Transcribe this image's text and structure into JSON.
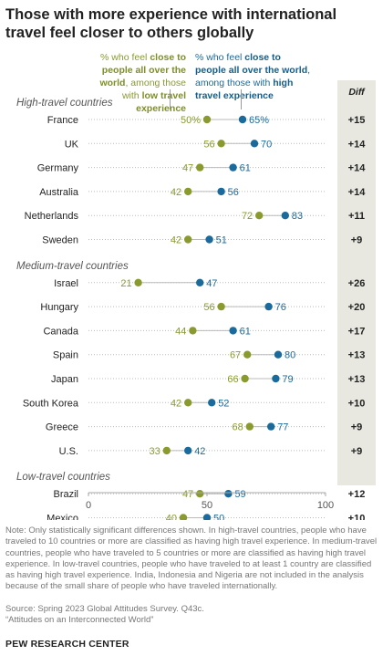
{
  "title": "Those with more experience with international travel feel closer to others globally",
  "legend": {
    "low": {
      "pre": "% who feel ",
      "bold1": "close to people all over the world",
      "mid": ", among those with ",
      "bold2": "low travel experience",
      "color": "#8a9a2e"
    },
    "high": {
      "pre": "% who feel ",
      "bold1": "close to people all over the world",
      "mid": ", among those with ",
      "bold2": "high travel experience",
      "color": "#1a6a9b"
    }
  },
  "colors": {
    "low": "#8a9a2e",
    "high": "#1a6a9b",
    "diff_bg": "#e8e8e0"
  },
  "chart_data": {
    "type": "scatter",
    "subtype": "dot-plot",
    "xlim": [
      0,
      100
    ],
    "x_ticks": [
      "0",
      "50",
      "100"
    ],
    "diff_header": "Diff",
    "series": [
      {
        "name": "Low travel experience",
        "color": "#8a9a2e"
      },
      {
        "name": "High travel experience",
        "color": "#1a6a9b"
      }
    ],
    "groups": [
      {
        "label": "High-travel countries",
        "rows": [
          {
            "country": "France",
            "low": 50,
            "high": 65,
            "low_label": "50%",
            "high_label": "65%",
            "diff": "+15"
          },
          {
            "country": "UK",
            "low": 56,
            "high": 70,
            "low_label": "56",
            "high_label": "70",
            "diff": "+14"
          },
          {
            "country": "Germany",
            "low": 47,
            "high": 61,
            "low_label": "47",
            "high_label": "61",
            "diff": "+14"
          },
          {
            "country": "Australia",
            "low": 42,
            "high": 56,
            "low_label": "42",
            "high_label": "56",
            "diff": "+14"
          },
          {
            "country": "Netherlands",
            "low": 72,
            "high": 83,
            "low_label": "72",
            "high_label": "83",
            "diff": "+11"
          },
          {
            "country": "Sweden",
            "low": 42,
            "high": 51,
            "low_label": "42",
            "high_label": "51",
            "diff": "+9"
          }
        ]
      },
      {
        "label": "Medium-travel countries",
        "rows": [
          {
            "country": "Israel",
            "low": 21,
            "high": 47,
            "low_label": "21",
            "high_label": "47",
            "diff": "+26"
          },
          {
            "country": "Hungary",
            "low": 56,
            "high": 76,
            "low_label": "56",
            "high_label": "76",
            "diff": "+20"
          },
          {
            "country": "Canada",
            "low": 44,
            "high": 61,
            "low_label": "44",
            "high_label": "61",
            "diff": "+17"
          },
          {
            "country": "Spain",
            "low": 67,
            "high": 80,
            "low_label": "67",
            "high_label": "80",
            "diff": "+13"
          },
          {
            "country": "Japan",
            "low": 66,
            "high": 79,
            "low_label": "66",
            "high_label": "79",
            "diff": "+13"
          },
          {
            "country": "South Korea",
            "low": 42,
            "high": 52,
            "low_label": "42",
            "high_label": "52",
            "diff": "+10"
          },
          {
            "country": "Greece",
            "low": 68,
            "high": 77,
            "low_label": "68",
            "high_label": "77",
            "diff": "+9"
          },
          {
            "country": "U.S.",
            "low": 33,
            "high": 42,
            "low_label": "33",
            "high_label": "42",
            "diff": "+9"
          }
        ]
      },
      {
        "label": "Low-travel countries",
        "rows": [
          {
            "country": "Brazil",
            "low": 47,
            "high": 59,
            "low_label": "47",
            "high_label": "59",
            "diff": "+12"
          },
          {
            "country": "Mexico",
            "low": 40,
            "high": 50,
            "low_label": "40",
            "high_label": "50",
            "diff": "+10"
          }
        ]
      }
    ]
  },
  "note": "Note: Only statistically significant differences shown. In high-travel countries, people who have traveled to 10 countries or more are classified as having high travel experience. In medium-travel countries, people who have traveled to 5 countries or more are classified as having high travel experience. In low-travel countries, people who have traveled to at least 1 country are classified as having high travel experience. India, Indonesia and Nigeria are not included in the analysis because of the small share of people who have traveled internationally.",
  "source": "Source: Spring 2023 Global Attitudes Survey. Q43c.",
  "citation": "“Attitudes on an Interconnected World”",
  "brand": "PEW RESEARCH CENTER"
}
